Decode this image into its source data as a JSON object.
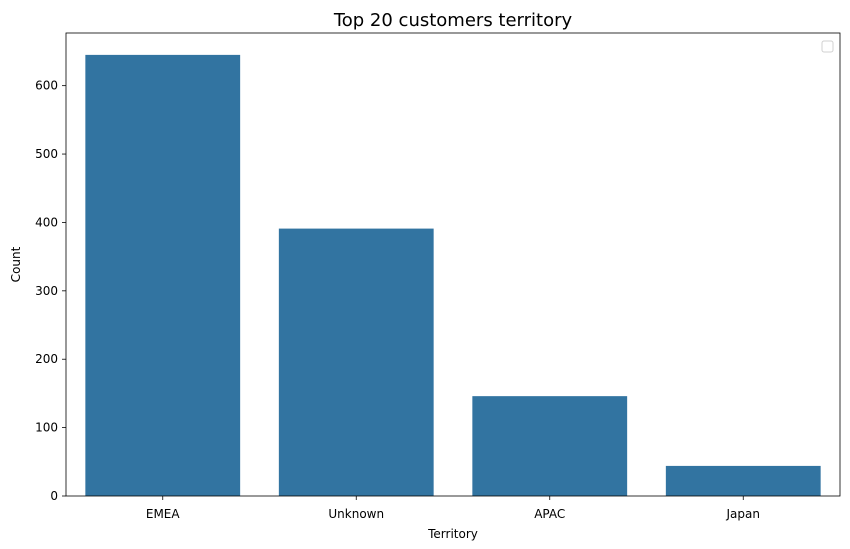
{
  "chart_data": {
    "type": "bar",
    "title": "Top 20 customers territory",
    "xlabel": "Territory",
    "ylabel": "Count",
    "categories": [
      "EMEA",
      "Unknown",
      "APAC",
      "Japan"
    ],
    "values": [
      645,
      391,
      146,
      44
    ],
    "ylim": [
      0,
      677
    ],
    "yticks": [
      0,
      100,
      200,
      300,
      400,
      500,
      600
    ],
    "bar_color": "#3274a1",
    "grid": false,
    "legend": "top-right (empty)"
  }
}
